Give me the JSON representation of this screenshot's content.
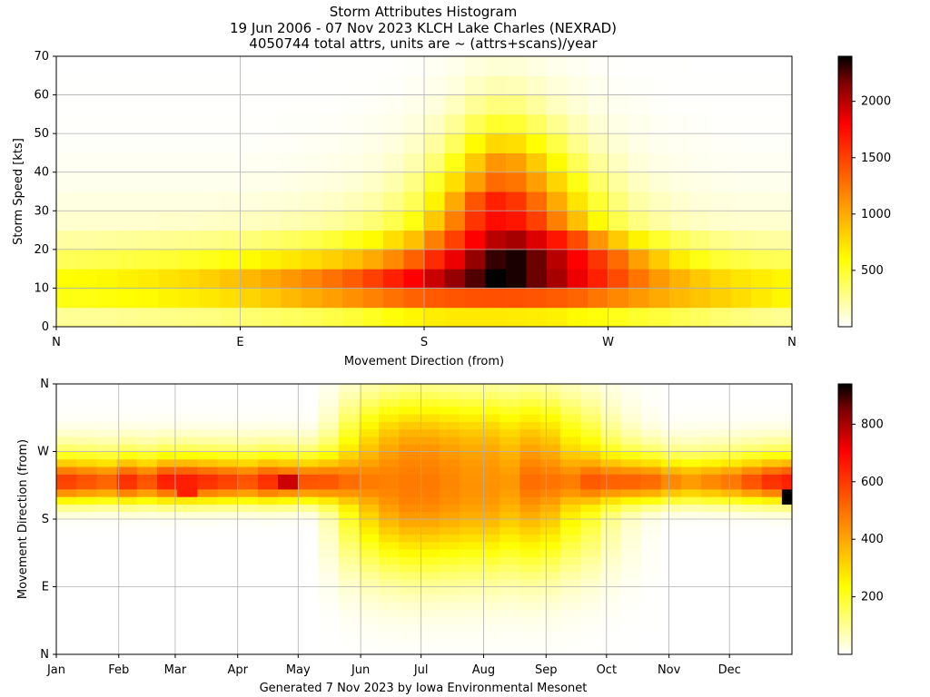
{
  "title_lines": [
    "Storm Attributes Histogram",
    "19 Jun 2006 - 07 Nov 2023 KLCH Lake Charles (NEXRAD)",
    "4050744 total attrs, units are ~ (attrs+scans)/year"
  ],
  "footer": "Generated 7 Nov 2023 by Iowa Environmental Mesonet",
  "chart_data": [
    {
      "type": "heatmap",
      "name": "speed-direction",
      "xlabel": "Movement Direction (from)",
      "ylabel": "Storm Speed [kts]",
      "x_ticks": [
        {
          "value": 0,
          "label": "N"
        },
        {
          "value": 90,
          "label": "E"
        },
        {
          "value": 180,
          "label": "S"
        },
        {
          "value": 270,
          "label": "W"
        },
        {
          "value": 360,
          "label": "N"
        }
      ],
      "xlim": [
        0,
        360
      ],
      "ylim": [
        0,
        70
      ],
      "y_ticks": [
        0,
        10,
        20,
        30,
        40,
        50,
        60,
        70
      ],
      "x_bin_width": 10,
      "y_bin_width": 5,
      "grid": true,
      "colormap": "afmhot_r",
      "colorbar": {
        "min": 0,
        "max": 2400,
        "ticks": [
          500,
          1000,
          1500,
          2000
        ]
      },
      "values": [
        [
          250,
          250,
          250,
          260,
          270,
          280,
          290,
          300,
          320,
          340,
          360,
          380,
          400,
          430,
          470,
          520,
          580,
          640,
          680,
          700,
          700,
          700,
          690,
          680,
          660,
          620,
          580,
          540,
          500,
          460,
          420,
          380,
          340,
          310,
          280,
          260
        ],
        [
          560,
          560,
          580,
          600,
          620,
          650,
          680,
          710,
          750,
          800,
          860,
          930,
          990,
          1050,
          1120,
          1190,
          1270,
          1340,
          1380,
          1400,
          1420,
          1430,
          1420,
          1400,
          1370,
          1320,
          1240,
          1160,
          1080,
          1000,
          930,
          870,
          820,
          760,
          700,
          640
        ],
        [
          600,
          610,
          630,
          660,
          690,
          730,
          770,
          820,
          880,
          940,
          1010,
          1090,
          1170,
          1270,
          1370,
          1500,
          1650,
          1800,
          1950,
          2100,
          2250,
          2400,
          2350,
          2200,
          2050,
          1850,
          1650,
          1450,
          1250,
          1080,
          960,
          860,
          780,
          720,
          680,
          640
        ],
        [
          400,
          410,
          420,
          440,
          460,
          480,
          510,
          540,
          580,
          620,
          660,
          710,
          760,
          820,
          900,
          1000,
          1150,
          1350,
          1600,
          1850,
          2100,
          2300,
          2350,
          2200,
          2000,
          1800,
          1550,
          1300,
          1050,
          850,
          680,
          560,
          480,
          440,
          410,
          400
        ],
        [
          220,
          220,
          230,
          240,
          250,
          260,
          270,
          280,
          300,
          320,
          350,
          380,
          420,
          470,
          540,
          620,
          750,
          900,
          1200,
          1500,
          1800,
          2000,
          2050,
          1900,
          1700,
          1450,
          1100,
          850,
          650,
          500,
          400,
          330,
          280,
          250,
          230,
          220
        ],
        [
          110,
          110,
          110,
          110,
          110,
          120,
          120,
          130,
          140,
          150,
          160,
          180,
          200,
          230,
          270,
          330,
          420,
          560,
          850,
          1200,
          1550,
          1750,
          1700,
          1500,
          1200,
          900,
          620,
          420,
          300,
          220,
          170,
          140,
          120,
          110,
          110,
          110
        ],
        [
          70,
          70,
          70,
          70,
          70,
          70,
          70,
          70,
          80,
          80,
          90,
          100,
          110,
          130,
          160,
          200,
          280,
          400,
          650,
          1000,
          1400,
          1650,
          1550,
          1300,
          1000,
          720,
          480,
          320,
          210,
          150,
          110,
          90,
          80,
          70,
          70,
          70
        ],
        [
          40,
          40,
          40,
          40,
          40,
          40,
          40,
          40,
          40,
          50,
          50,
          60,
          70,
          80,
          100,
          130,
          190,
          290,
          500,
          750,
          1050,
          1300,
          1250,
          1050,
          800,
          560,
          350,
          230,
          150,
          100,
          70,
          60,
          50,
          40,
          40,
          40
        ],
        [
          25,
          25,
          25,
          25,
          25,
          25,
          25,
          25,
          25,
          30,
          30,
          35,
          40,
          50,
          60,
          80,
          120,
          190,
          330,
          550,
          850,
          1100,
          1050,
          850,
          620,
          400,
          240,
          150,
          90,
          60,
          45,
          35,
          30,
          25,
          25,
          25
        ],
        [
          15,
          15,
          15,
          15,
          15,
          15,
          15,
          15,
          15,
          15,
          20,
          20,
          25,
          30,
          40,
          55,
          80,
          130,
          220,
          380,
          620,
          780,
          750,
          600,
          430,
          270,
          160,
          100,
          60,
          40,
          30,
          25,
          20,
          15,
          15,
          15
        ],
        [
          10,
          10,
          10,
          10,
          10,
          10,
          10,
          10,
          10,
          10,
          10,
          15,
          15,
          20,
          25,
          35,
          50,
          80,
          140,
          250,
          400,
          500,
          480,
          380,
          260,
          170,
          100,
          60,
          40,
          25,
          20,
          15,
          10,
          10,
          10,
          10
        ],
        [
          5,
          5,
          5,
          5,
          5,
          5,
          5,
          5,
          5,
          5,
          5,
          10,
          10,
          10,
          15,
          20,
          30,
          50,
          80,
          150,
          250,
          310,
          300,
          230,
          150,
          100,
          60,
          35,
          25,
          15,
          10,
          10,
          5,
          5,
          5,
          5
        ],
        [
          5,
          5,
          5,
          5,
          5,
          5,
          5,
          5,
          5,
          5,
          5,
          5,
          5,
          5,
          10,
          10,
          15,
          25,
          45,
          80,
          140,
          180,
          170,
          130,
          90,
          55,
          35,
          20,
          15,
          10,
          5,
          5,
          5,
          5,
          5,
          5
        ],
        [
          0,
          0,
          0,
          0,
          0,
          0,
          0,
          0,
          0,
          0,
          0,
          0,
          0,
          5,
          5,
          5,
          10,
          15,
          25,
          45,
          80,
          100,
          95,
          70,
          50,
          30,
          20,
          10,
          5,
          5,
          5,
          0,
          0,
          0,
          0,
          0
        ]
      ]
    },
    {
      "type": "heatmap",
      "name": "direction-week",
      "xlabel": "",
      "ylabel": "Movement Direction (from)",
      "x_ticks": [
        {
          "value": 0,
          "label": "Jan"
        },
        {
          "value": 31,
          "label": "Feb"
        },
        {
          "value": 59,
          "label": "Mar"
        },
        {
          "value": 90,
          "label": "Apr"
        },
        {
          "value": 120,
          "label": "May"
        },
        {
          "value": 151,
          "label": "Jun"
        },
        {
          "value": 181,
          "label": "Jul"
        },
        {
          "value": 212,
          "label": "Aug"
        },
        {
          "value": 243,
          "label": "Sep"
        },
        {
          "value": 273,
          "label": "Oct"
        },
        {
          "value": 304,
          "label": "Nov"
        },
        {
          "value": 334,
          "label": "Dec"
        }
      ],
      "xlim": [
        0,
        365
      ],
      "y_ticks": [
        {
          "value": 0,
          "label": "N"
        },
        {
          "value": 90,
          "label": "E"
        },
        {
          "value": 180,
          "label": "S"
        },
        {
          "value": 270,
          "label": "W"
        },
        {
          "value": 360,
          "label": "N"
        }
      ],
      "ylim": [
        0,
        360
      ],
      "x_bin_width": 10,
      "y_bin_width": 10,
      "grid": true,
      "colormap": "afmhot_r",
      "colorbar": {
        "min": 0,
        "max": 940,
        "ticks": [
          200,
          400,
          600,
          800
        ]
      },
      "weekly_intensity": [
        0.9,
        0.85,
        0.8,
        0.95,
        0.85,
        1.0,
        1.0,
        0.95,
        0.9,
        0.85,
        0.95,
        0.9,
        0.85,
        0.9,
        0.95,
        1.0,
        1.05,
        1.1,
        1.1,
        1.05,
        1.0,
        1.0,
        0.95,
        1.1,
        1.05,
        0.95,
        1.0,
        0.9,
        0.85,
        0.8,
        0.7,
        0.65,
        0.7,
        0.75,
        0.85,
        0.95,
        1.0
      ],
      "summer_weight": [
        0,
        0,
        0,
        0,
        0,
        0,
        0,
        0,
        0,
        0,
        0,
        0,
        0,
        0.2,
        0.55,
        0.8,
        0.95,
        1,
        1,
        1,
        1,
        1,
        0.95,
        0.9,
        0.85,
        0.7,
        0.5,
        0.3,
        0.15,
        0.05,
        0,
        0,
        0,
        0,
        0,
        0,
        0
      ],
      "peak_cells": [
        {
          "week": 36,
          "direction": 210,
          "value": 940
        },
        {
          "week": 6,
          "direction": 220,
          "value": 650
        },
        {
          "week": 11,
          "direction": 230,
          "value": 760
        }
      ]
    }
  ]
}
